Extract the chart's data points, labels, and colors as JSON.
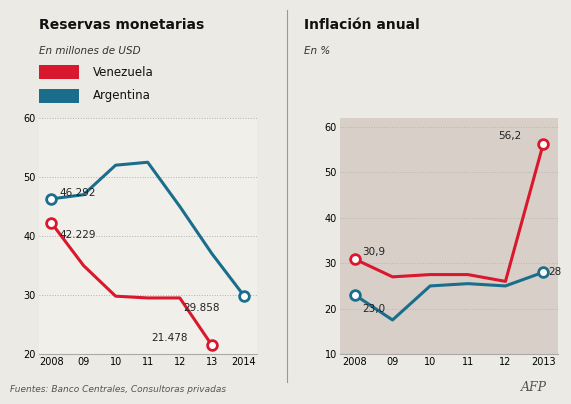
{
  "left_title": "Reservas monetarias",
  "left_subtitle": "En millones de USD",
  "right_title": "Inflación anual",
  "right_subtitle": "En %",
  "footer": "Fuentes: Banco Centrales, Consultoras privadas",
  "watermark": "AFP",
  "res_years": [
    2008,
    2009,
    2010,
    2011,
    2012,
    2013,
    2014
  ],
  "res_venezuela": [
    42.229,
    35.0,
    29.8,
    29.5,
    29.5,
    21.478,
    null
  ],
  "res_argentina": [
    46.292,
    47.0,
    52.0,
    52.5,
    45.0,
    37.0,
    29.858
  ],
  "infl_years": [
    2008,
    2009,
    2010,
    2011,
    2012,
    2013
  ],
  "infl_venezuela": [
    30.9,
    27.0,
    27.5,
    27.5,
    26.0,
    56.2
  ],
  "infl_argentina": [
    23.0,
    17.5,
    25.0,
    25.5,
    25.0,
    28.0
  ],
  "color_venezuela": "#d9182d",
  "color_argentina": "#1a6e8c",
  "color_bg_left": "#f0efea",
  "color_bg_right": "#d8cfc8",
  "color_fig": "#eceae4",
  "grid_color": "#aaaaaa",
  "res_ylim": [
    20,
    60
  ],
  "res_yticks": [
    20,
    30,
    40,
    50,
    60
  ],
  "infl_ylim": [
    10,
    62
  ],
  "infl_yticks": [
    10,
    20,
    30,
    40,
    50,
    60
  ],
  "legend_venezuela": "Venezuela",
  "legend_argentina": "Argentina"
}
